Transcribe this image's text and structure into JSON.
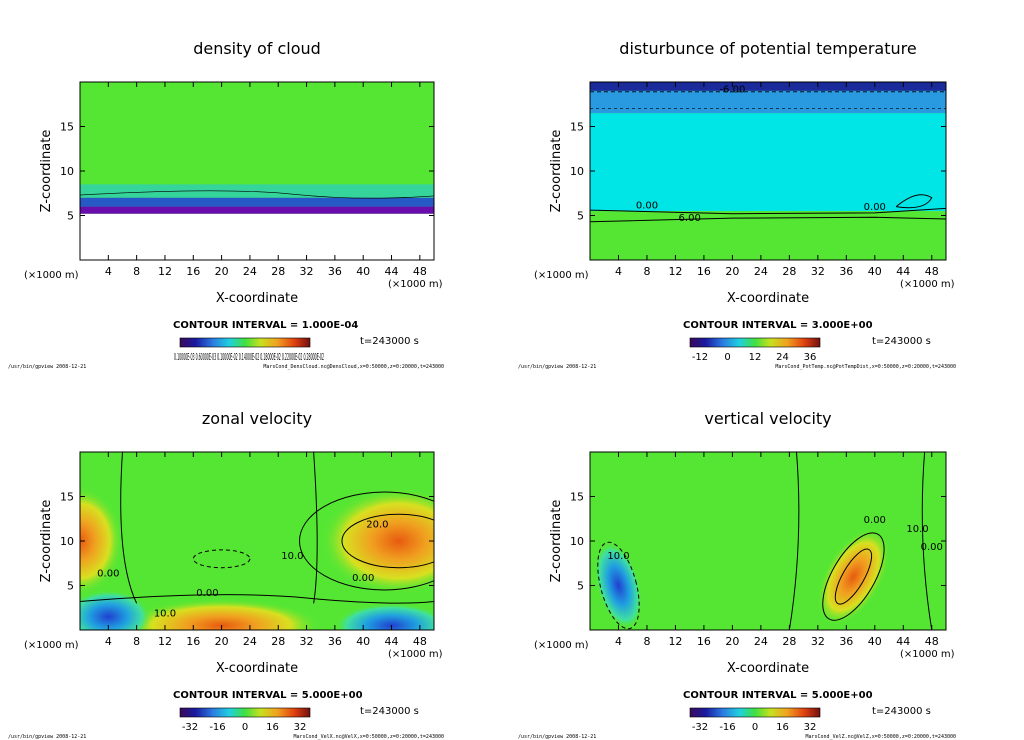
{
  "colors": {
    "green": "#55e633",
    "cyan": "#00e6e6",
    "orange": "#f08020",
    "blue": "#2040e0",
    "purple": "#6a0dad",
    "navy": "#1a2a9a"
  },
  "chart_data": [
    {
      "type": "heatmap",
      "title": "density of cloud",
      "xlabel": "X-coordinate",
      "ylabel": "Z-coordinate",
      "x_unit": "(×1000 m)",
      "x_ticks": [
        4,
        8,
        12,
        16,
        20,
        24,
        28,
        32,
        36,
        40,
        44,
        48
      ],
      "y_ticks": [
        5,
        10,
        15
      ],
      "xlim": [
        0,
        50
      ],
      "ylim": [
        0,
        20
      ],
      "contour_interval": "CONTOUR INTERVAL = 1.000E-04",
      "time": "t=243000 s",
      "colorbar_label": "0.10000E-03 0.60000E-03 0.10000E-02 0.14000E-02 0.18000E-02 0.22000E-02 0.28000E-02",
      "contour_labels": [],
      "footer_left": "/usr/bin/gpview   2008-12-21",
      "footer_right": "MarsCond_DensCloud.nc@DensCloud,x=0:50000,z=0:20000,t=243000"
    },
    {
      "type": "heatmap",
      "title": "disturbunce of potential temperature",
      "xlabel": "X-coordinate",
      "ylabel": "Z-coordinate",
      "x_unit": "(×1000 m)",
      "x_ticks": [
        4,
        8,
        12,
        16,
        20,
        24,
        28,
        32,
        36,
        40,
        44,
        48
      ],
      "y_ticks": [
        5,
        10,
        15
      ],
      "xlim": [
        0,
        50
      ],
      "ylim": [
        0,
        20
      ],
      "contour_interval": "CONTOUR INTERVAL = 3.000E+00",
      "time": "t=243000 s",
      "colorbar_ticks": [
        "-12",
        "0",
        "12",
        "24",
        "36"
      ],
      "contour_labels": [
        "-6.00",
        "0.00",
        "6.00",
        "0.00"
      ],
      "footer_left": "/usr/bin/gpview   2008-12-21",
      "footer_right": "MarsCond_PotTemp.nc@PotTempDist,x=0:50000,z=0:20000,t=243000"
    },
    {
      "type": "heatmap",
      "title": "zonal velocity",
      "xlabel": "X-coordinate",
      "ylabel": "Z-coordinate",
      "x_unit": "(×1000 m)",
      "x_ticks": [
        4,
        8,
        12,
        16,
        20,
        24,
        28,
        32,
        36,
        40,
        44,
        48
      ],
      "y_ticks": [
        5,
        10,
        15
      ],
      "xlim": [
        0,
        50
      ],
      "ylim": [
        0,
        20
      ],
      "contour_interval": "CONTOUR INTERVAL = 5.000E+00",
      "time": "t=243000 s",
      "colorbar_ticks": [
        "-32",
        "-16",
        "0",
        "16",
        "32"
      ],
      "contour_labels": [
        "20.0",
        "10.0",
        "0.00",
        "0.00",
        "0.00",
        "10.0"
      ],
      "footer_left": "/usr/bin/gpview   2008-12-21",
      "footer_right": "MarsCond_VelX.nc@VelX,x=0:50000,z=0:20000,t=243000"
    },
    {
      "type": "heatmap",
      "title": "vertical velocity",
      "xlabel": "X-coordinate",
      "ylabel": "Z-coordinate",
      "x_unit": "(×1000 m)",
      "x_ticks": [
        4,
        8,
        12,
        16,
        20,
        24,
        28,
        32,
        36,
        40,
        44,
        48
      ],
      "y_ticks": [
        5,
        10,
        15
      ],
      "xlim": [
        0,
        50
      ],
      "ylim": [
        0,
        20
      ],
      "contour_interval": "CONTOUR INTERVAL = 5.000E+00",
      "time": "t=243000 s",
      "colorbar_ticks": [
        "-32",
        "-16",
        "0",
        "16",
        "32"
      ],
      "contour_labels": [
        "10.0",
        "0.00",
        "10.0",
        "0.00"
      ],
      "footer_left": "/usr/bin/gpview   2008-12-21",
      "footer_right": "MarsCond_VelZ.nc@VelZ,x=0:50000,z=0:20000,t=243000"
    }
  ]
}
